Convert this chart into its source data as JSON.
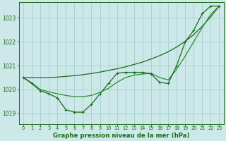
{
  "background_color": "#cce8e8",
  "grid_color": "#99cccc",
  "line_color_dark": "#1a6b1a",
  "line_color_mid": "#2d8c2d",
  "x_ticks": [
    0,
    1,
    2,
    3,
    4,
    5,
    6,
    7,
    8,
    9,
    10,
    11,
    12,
    13,
    14,
    15,
    16,
    17,
    18,
    19,
    20,
    21,
    22,
    23
  ],
  "y_ticks": [
    1019,
    1020,
    1021,
    1022,
    1023
  ],
  "ylim": [
    1018.55,
    1023.65
  ],
  "xlim": [
    -0.5,
    23.5
  ],
  "xlabel": "Graphe pression niveau de la mer (hPa)",
  "s_straight": [
    1020.5,
    1020.5,
    1020.5,
    1020.5,
    1020.52,
    1020.55,
    1020.58,
    1020.62,
    1020.67,
    1020.73,
    1020.8,
    1020.87,
    1020.95,
    1021.05,
    1021.15,
    1021.28,
    1021.42,
    1021.58,
    1021.78,
    1022.02,
    1022.3,
    1022.65,
    1023.05,
    1023.5
  ],
  "s_middle": [
    1020.5,
    1020.28,
    1020.0,
    1019.9,
    1019.82,
    1019.75,
    1019.7,
    1019.7,
    1019.75,
    1019.88,
    1020.05,
    1020.3,
    1020.5,
    1020.6,
    1020.65,
    1020.68,
    1020.5,
    1020.4,
    1020.85,
    1021.4,
    1022.0,
    1022.6,
    1023.15,
    1023.5
  ],
  "s_marked": [
    1020.5,
    1020.25,
    1019.95,
    1019.82,
    1019.65,
    1019.15,
    1019.05,
    1019.05,
    1019.38,
    1019.82,
    1020.25,
    1020.68,
    1020.72,
    1020.72,
    1020.72,
    1020.65,
    1020.3,
    1020.25,
    1021.0,
    1022.0,
    1022.48,
    1023.18,
    1023.5,
    1023.5
  ]
}
